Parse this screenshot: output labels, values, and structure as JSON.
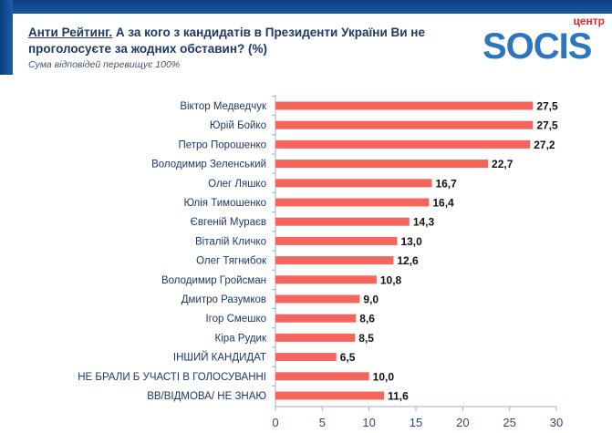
{
  "header": {
    "title_underlined": "Анти Рейтинг.",
    "title_rest": " А за кого з кандидатів в Президенти України Ви не проголосуєте за жодних обставин? (%)",
    "subtitle": "Сума відповідей перевищує 100%"
  },
  "logo": {
    "small": "центр",
    "main": "SOCIS"
  },
  "colors": {
    "bar": "#f4665c",
    "axis": "#a6adc8",
    "label": "#1f3864"
  },
  "chart_data": {
    "type": "bar",
    "orientation": "horizontal",
    "title": "Анти Рейтинг. А за кого з кандидатів в Президенти України Ви не проголосуєте за жодних обставин? (%)",
    "categories": [
      "Віктор Медведчук",
      "Юрій Бойко",
      "Петро Порошенко",
      "Володимир Зеленський",
      "Олег Ляшко",
      "Юлія Тимошенко",
      "Євгеній Мураєв",
      "Віталій Кличко",
      "Олег Тягнибок",
      "Володимир Гройсман",
      "Дмитро Разумков",
      "Ігор Смешко",
      "Кіра Рудик",
      "ІНШИЙ КАНДИДАТ",
      "НЕ БРАЛИ Б УЧАСТІ В ГОЛОСУВАННІ",
      "ВВ/ВІДМОВА/ НЕ ЗНАЮ"
    ],
    "values": [
      27.5,
      27.5,
      27.2,
      22.7,
      16.7,
      16.4,
      14.3,
      13.0,
      12.6,
      10.8,
      9.0,
      8.6,
      8.5,
      6.5,
      10.0,
      11.6
    ],
    "value_labels": [
      "27,5",
      "27,5",
      "27,2",
      "22,7",
      "16,7",
      "16,4",
      "14,3",
      "13,0",
      "12,6",
      "10,8",
      "9,0",
      "8,6",
      "8,5",
      "6,5",
      "10,0",
      "11,6"
    ],
    "xlim": [
      0,
      30
    ],
    "xticks": [
      "0",
      "5",
      "10",
      "15",
      "20",
      "25",
      "30"
    ],
    "grid": false,
    "legend": "none"
  }
}
